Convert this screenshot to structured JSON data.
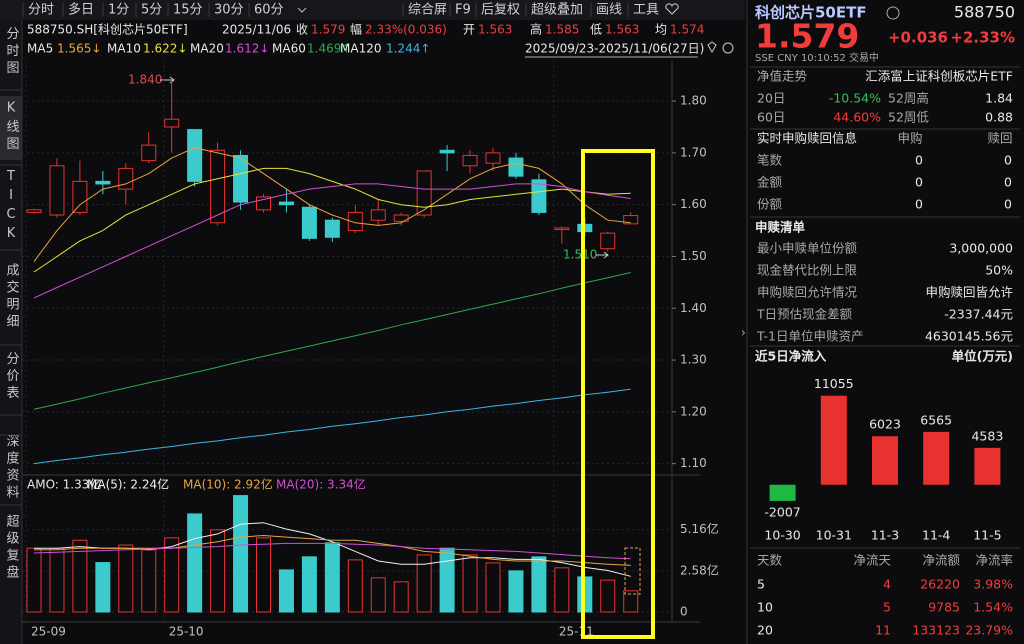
{
  "toolbar": {
    "tabs": [
      "分时",
      "多日",
      "1分",
      "5分",
      "15分",
      "30分",
      "60分"
    ],
    "tools": [
      "综合屏",
      "F9",
      "后复权",
      "超级叠加",
      "画线",
      "工具"
    ]
  },
  "side_tabs": [
    "分时图",
    "K线图",
    "TICK",
    "成交明细",
    "分价表",
    "深度资料",
    "超级复盘"
  ],
  "info": {
    "code": "588750.SH[科创芯片50ETF]",
    "date": "2025/11/06",
    "close_label": "收",
    "close": "1.579",
    "change_label": "幅",
    "change": "2.33%(0.036)",
    "open_label": "开",
    "open": "1.563",
    "high_label": "高",
    "high": "1.585",
    "low_label": "低",
    "low": "1.563",
    "avg_label": "均",
    "avg": "1.574"
  },
  "date_range": "2025/09/23-2025/11/06(27日)",
  "chart_data": [
    {
      "type": "candlestick",
      "categories": [
        "25-09",
        null,
        null,
        null,
        null,
        null,
        "25-10",
        null,
        null,
        null,
        null,
        null,
        null,
        null,
        null,
        null,
        null,
        null,
        null,
        null,
        null,
        null,
        null,
        "25-11",
        null,
        null,
        null
      ],
      "open": [
        1.585,
        1.58,
        1.585,
        1.645,
        1.63,
        1.685,
        1.75,
        1.745,
        1.565,
        1.695,
        1.59,
        1.605,
        1.595,
        1.57,
        1.55,
        1.57,
        1.568,
        1.58,
        1.705,
        1.675,
        1.68,
        1.69,
        1.648,
        1.552,
        1.562,
        1.515,
        1.563
      ],
      "high": [
        1.592,
        1.69,
        1.685,
        1.665,
        1.68,
        1.74,
        1.84,
        1.745,
        1.72,
        1.705,
        1.62,
        1.63,
        1.6,
        1.575,
        1.6,
        1.61,
        1.585,
        1.665,
        1.715,
        1.705,
        1.71,
        1.7,
        1.66,
        1.558,
        1.575,
        1.548,
        1.585
      ],
      "low": [
        1.583,
        1.575,
        1.58,
        1.62,
        1.6,
        1.68,
        1.7,
        1.635,
        1.56,
        1.59,
        1.585,
        1.585,
        1.53,
        1.528,
        1.545,
        1.56,
        1.56,
        1.575,
        1.665,
        1.66,
        1.665,
        1.65,
        1.58,
        1.525,
        1.54,
        1.51,
        1.563
      ],
      "close": [
        1.59,
        1.675,
        1.645,
        1.64,
        1.67,
        1.715,
        1.765,
        1.645,
        1.705,
        1.605,
        1.615,
        1.6,
        1.535,
        1.537,
        1.585,
        1.59,
        1.58,
        1.665,
        1.7,
        1.695,
        1.7,
        1.655,
        1.585,
        1.555,
        1.548,
        1.545,
        1.579
      ],
      "up_color": "#e8322f",
      "down_color": "#3ccbcc",
      "ylim": [
        1.08,
        1.86
      ],
      "yticks": [
        {
          "value": 1.8,
          "label": "1.80"
        },
        {
          "value": 1.7,
          "label": "1.70"
        },
        {
          "value": 1.6,
          "label": "1.60"
        },
        {
          "value": 1.5,
          "label": "1.50"
        },
        {
          "value": 1.4,
          "label": "1.40"
        },
        {
          "value": 1.3,
          "label": "1.30"
        },
        {
          "value": 1.2,
          "label": "1.20"
        },
        {
          "value": 1.1,
          "label": "1.10"
        }
      ],
      "grid": true,
      "annotations": [
        "1.840",
        "1.510"
      ],
      "series": [
        {
          "name": "MA5",
          "label": "1.565↓",
          "color": "#e8a33d",
          "values": [
            1.49,
            1.55,
            1.6,
            1.63,
            1.64,
            1.66,
            1.69,
            1.71,
            1.7,
            1.69,
            1.66,
            1.63,
            1.6,
            1.58,
            1.565,
            1.56,
            1.565,
            1.59,
            1.62,
            1.65,
            1.67,
            1.68,
            1.67,
            1.64,
            1.6,
            1.57,
            1.565
          ]
        },
        {
          "name": "MA10",
          "label": "1.622↓",
          "color": "#e6e23a",
          "values": [
            1.47,
            1.5,
            1.53,
            1.55,
            1.58,
            1.6,
            1.62,
            1.64,
            1.65,
            1.66,
            1.67,
            1.67,
            1.66,
            1.645,
            1.63,
            1.61,
            1.6,
            1.595,
            1.6,
            1.61,
            1.615,
            1.62,
            1.625,
            1.63,
            1.625,
            1.62,
            1.622
          ]
        },
        {
          "name": "MA20",
          "label": "1.612↓",
          "color": "#d24fd6",
          "values": [
            1.42,
            1.44,
            1.46,
            1.48,
            1.5,
            1.52,
            1.54,
            1.56,
            1.58,
            1.6,
            1.61,
            1.62,
            1.63,
            1.635,
            1.64,
            1.64,
            1.635,
            1.63,
            1.63,
            1.63,
            1.635,
            1.64,
            1.64,
            1.635,
            1.625,
            1.618,
            1.612
          ]
        },
        {
          "name": "MA60",
          "label": "1.469↑",
          "color": "#2fa84a",
          "values": [
            1.205,
            1.215,
            1.225,
            1.236,
            1.246,
            1.256,
            1.266,
            1.276,
            1.286,
            1.297,
            1.307,
            1.317,
            1.327,
            1.337,
            1.347,
            1.357,
            1.368,
            1.378,
            1.388,
            1.398,
            1.408,
            1.418,
            1.428,
            1.439,
            1.449,
            1.459,
            1.469
          ]
        },
        {
          "name": "MA120",
          "label": "1.244↑",
          "color": "#3fb4e0",
          "values": [
            1.1,
            1.106,
            1.111,
            1.117,
            1.122,
            1.128,
            1.133,
            1.139,
            1.144,
            1.15,
            1.155,
            1.161,
            1.166,
            1.172,
            1.177,
            1.183,
            1.189,
            1.194,
            1.2,
            1.205,
            1.211,
            1.216,
            1.222,
            1.227,
            1.233,
            1.238,
            1.244
          ]
        }
      ]
    },
    {
      "type": "bar",
      "ylim": [
        0,
        7.4
      ],
      "yticks": [
        {
          "value": 5.16,
          "label": "5.16亿"
        },
        {
          "value": 2.58,
          "label": "2.58亿"
        },
        0
      ],
      "up_color": "#e8322f",
      "down_color": "#3ccbcc",
      "series": [
        {
          "name": "AMO: 1.33亿",
          "color": "#e8e8e8",
          "type": "bar",
          "values": [
            4.0,
            4.0,
            4.5,
            3.1,
            4.2,
            3.9,
            4.65,
            6.15,
            5.15,
            7.3,
            4.65,
            2.64,
            3.46,
            4.34,
            3.27,
            2.14,
            1.89,
            3.58,
            4.0,
            3.58,
            3.08,
            2.58,
            3.46,
            2.77,
            2.2,
            2.0,
            1.33
          ],
          "colors": [
            "#e8322f",
            "#e8322f",
            "#e8322f",
            "#3ccbcc",
            "#e8322f",
            "#e8322f",
            "#e8322f",
            "#3ccbcc",
            "#e8322f",
            "#3ccbcc",
            "#e8322f",
            "#3ccbcc",
            "#3ccbcc",
            "#3ccbcc",
            "#e8322f",
            "#e8322f",
            "#e8322f",
            "#e8322f",
            "#3ccbcc",
            "#e8322f",
            "#e8322f",
            "#3ccbcc",
            "#3ccbcc",
            "#e8322f",
            "#3ccbcc",
            "#e8322f",
            "#e8322f"
          ]
        },
        {
          "name": "MA(5): 2.24亿",
          "color": "#f0f0f0",
          "type": "line",
          "values": [
            4.0,
            4.0,
            4.1,
            4.0,
            4.0,
            3.9,
            4.1,
            4.6,
            4.9,
            5.5,
            5.6,
            5.2,
            4.9,
            4.4,
            3.8,
            3.2,
            3.0,
            3.0,
            3.2,
            3.4,
            3.4,
            3.3,
            3.3,
            3.1,
            2.8,
            2.6,
            2.24
          ]
        },
        {
          "name": "MA(10): 2.92亿",
          "color": "#e8a33d",
          "type": "line",
          "values": [
            3.9,
            3.9,
            4.0,
            4.0,
            4.0,
            4.0,
            4.0,
            4.2,
            4.4,
            4.7,
            4.8,
            4.7,
            4.6,
            4.5,
            4.5,
            4.3,
            4.1,
            3.8,
            3.7,
            3.5,
            3.3,
            3.2,
            3.2,
            3.2,
            3.1,
            3.0,
            2.92
          ]
        },
        {
          "name": "MA(20): 3.34亿",
          "color": "#d24fd6",
          "type": "line",
          "values": [
            3.7,
            3.75,
            3.8,
            3.85,
            3.9,
            3.95,
            4.0,
            4.05,
            4.1,
            4.2,
            4.25,
            4.3,
            4.3,
            4.3,
            4.25,
            4.2,
            4.1,
            4.0,
            3.95,
            3.9,
            3.85,
            3.8,
            3.7,
            3.6,
            3.5,
            3.4,
            3.34
          ]
        }
      ]
    },
    {
      "type": "bar",
      "title": "近5日净流入",
      "unit": "单位(万元)",
      "categories": [
        "10-30",
        "10-31",
        "11-3",
        "11-4",
        "11-5"
      ],
      "values": [
        -2007,
        11055,
        6023,
        6565,
        4583
      ],
      "colors": [
        "#1fb845",
        "#e8322f",
        "#e8322f",
        "#e8322f",
        "#e8322f"
      ],
      "ylim": [
        -4500,
        13500
      ]
    }
  ],
  "quote": {
    "name": "科创芯片50ETF",
    "code": "588750",
    "price": "1.579",
    "change": "+0.036",
    "change_pct": "+2.33%",
    "status": "SSE  CNY  10:10:52  交易中"
  },
  "nav": {
    "title": "净值走势",
    "fund": "汇添富上证科创板芯片ETF",
    "rows": [
      [
        "20日",
        "-10.54%",
        "52周高",
        "1.84"
      ],
      [
        "60日",
        "44.60%",
        "52周低",
        "0.88"
      ]
    ]
  },
  "realtime": {
    "title": "实时申购赎回信息",
    "headers": [
      "申购",
      "赎回"
    ],
    "rows": [
      [
        "笔数",
        "0",
        "0"
      ],
      [
        "金额",
        "0",
        "0"
      ],
      [
        "份额",
        "0",
        "0"
      ]
    ]
  },
  "list": {
    "title": "申赎清单",
    "rows": [
      [
        "最小申赎单位份额",
        "3,000,000"
      ],
      [
        "现金替代比例上限",
        "50%"
      ],
      [
        "申购赎回允许情况",
        "申购赎回皆允许"
      ],
      [
        "T日预估现金差额",
        "-2337.44元"
      ],
      [
        "T-1日单位申赎资产",
        "4630145.56元"
      ]
    ]
  },
  "flow_table": {
    "headers": [
      "天数",
      "净流天",
      "净流额",
      "净流率"
    ],
    "rows": [
      [
        "5",
        "4",
        "26220",
        "3.98%"
      ],
      [
        "10",
        "5",
        "9785",
        "1.54%"
      ],
      [
        "20",
        "11",
        "133123",
        "23.79%"
      ]
    ]
  }
}
